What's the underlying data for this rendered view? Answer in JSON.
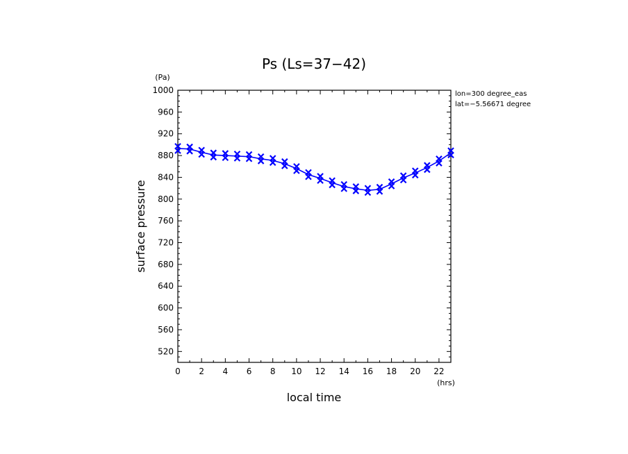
{
  "chart_data": {
    "type": "line",
    "title": "Ps (Ls=37−42)",
    "xlabel": "local time",
    "ylabel": "surface pressure",
    "x_unit": "(hrs)",
    "y_unit": "(Pa)",
    "xlim": [
      0,
      23
    ],
    "ylim": [
      500,
      1000
    ],
    "x_ticks": [
      0,
      2,
      4,
      6,
      8,
      10,
      12,
      14,
      16,
      18,
      20,
      22
    ],
    "y_ticks": [
      520,
      560,
      600,
      640,
      680,
      720,
      760,
      800,
      840,
      880,
      920,
      960,
      1000
    ],
    "annotations": [
      "lon=300 degree_eas",
      "lat=−5.56671 degree"
    ],
    "line_color": "#0000ff",
    "marker": "x",
    "x": [
      0,
      1,
      2,
      3,
      4,
      5,
      6,
      7,
      8,
      9,
      10,
      11,
      12,
      13,
      14,
      15,
      16,
      17,
      18,
      19,
      20,
      21,
      22,
      23
    ],
    "series": [
      {
        "values": [
          893,
          892,
          886,
          881,
          880,
          879,
          878,
          874,
          871,
          865,
          856,
          845,
          838,
          830,
          823,
          819,
          816,
          818,
          828,
          839,
          848,
          858,
          870,
          885
        ]
      }
    ],
    "scatter_offsets": [
      4,
      -4
    ]
  }
}
